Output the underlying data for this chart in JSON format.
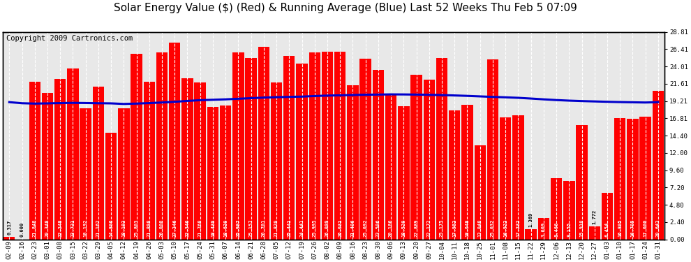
{
  "title": "Solar Energy Value ($) (Red) & Running Average (Blue) Last 52 Weeks Thu Feb 5 07:09",
  "copyright": "Copyright 2009 Cartronics.com",
  "bar_color": "#ff0000",
  "line_color": "#0000cc",
  "background_color": "#ffffff",
  "grid_color": "#aaaaaa",
  "categories": [
    "02-09",
    "02-16",
    "02-23",
    "03-01",
    "03-08",
    "03-15",
    "03-22",
    "03-29",
    "04-05",
    "04-12",
    "04-19",
    "04-26",
    "05-03",
    "05-10",
    "05-17",
    "05-24",
    "05-31",
    "06-07",
    "06-14",
    "06-21",
    "06-28",
    "07-05",
    "07-12",
    "07-19",
    "07-26",
    "08-02",
    "08-09",
    "08-16",
    "08-23",
    "08-30",
    "09-06",
    "09-13",
    "09-20",
    "09-27",
    "10-04",
    "10-11",
    "10-18",
    "10-25",
    "11-01",
    "11-08",
    "11-15",
    "11-22",
    "11-29",
    "12-06",
    "12-13",
    "12-20",
    "12-27",
    "01-03",
    "01-10",
    "01-17",
    "01-24",
    "01-31"
  ],
  "values": [
    0.317,
    0.0,
    21.848,
    20.348,
    22.248,
    23.731,
    18.192,
    21.162,
    14.806,
    18.193,
    25.803,
    21.898,
    26.0,
    27.346,
    22.346,
    21.768,
    18.43,
    18.63,
    25.997,
    25.157,
    26.701,
    21.82,
    25.441,
    24.441,
    25.995,
    26.099,
    26.031,
    21.406,
    25.092,
    23.506,
    20.186,
    18.52,
    22.889,
    22.172,
    25.175,
    17.952,
    18.648,
    13.048,
    25.032,
    16.922,
    17.232,
    1.369,
    3.009,
    8.466,
    8.155,
    15.91,
    1.772,
    6.454,
    16.805,
    16.705,
    17.0,
    20.643
  ],
  "running_avg": [
    19.05,
    18.9,
    18.85,
    18.88,
    18.92,
    18.95,
    18.93,
    18.9,
    18.88,
    18.8,
    18.85,
    18.92,
    19.0,
    19.1,
    19.22,
    19.32,
    19.38,
    19.44,
    19.52,
    19.6,
    19.68,
    19.74,
    19.78,
    19.82,
    19.9,
    19.96,
    20.0,
    20.04,
    20.08,
    20.1,
    20.13,
    20.12,
    20.1,
    20.07,
    20.03,
    19.98,
    19.92,
    19.85,
    19.78,
    19.72,
    19.65,
    19.55,
    19.44,
    19.34,
    19.26,
    19.2,
    19.15,
    19.1,
    19.06,
    19.03,
    19.0,
    19.05
  ],
  "ylim": [
    0.0,
    28.81
  ],
  "yticks_right": [
    0.0,
    2.4,
    4.8,
    7.2,
    9.6,
    12.0,
    14.4,
    16.81,
    19.21,
    21.61,
    24.01,
    26.41,
    28.81
  ],
  "title_fontsize": 11,
  "label_fontsize": 5,
  "tick_fontsize": 6.5,
  "copyright_fontsize": 7.5
}
